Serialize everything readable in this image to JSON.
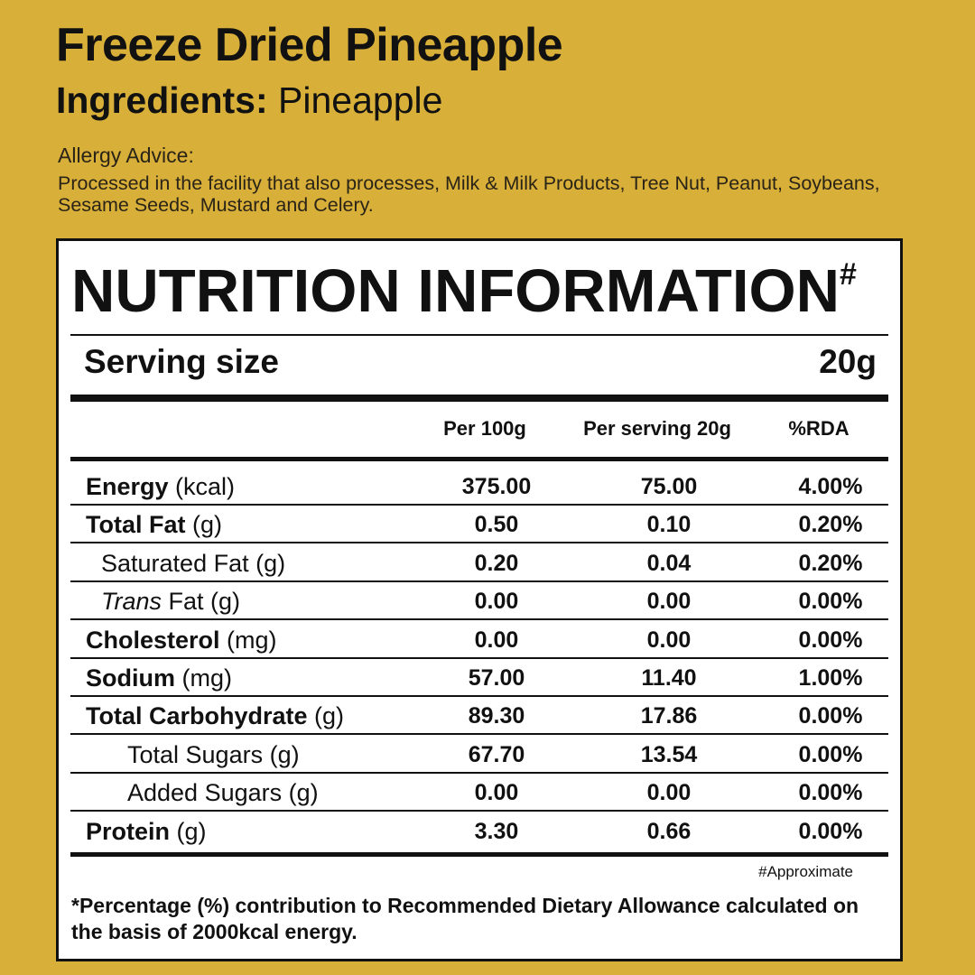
{
  "product": {
    "title": "Freeze Dried Pineapple",
    "ingredients_label": "Ingredients:",
    "ingredients_value": " Pineapple"
  },
  "allergy": {
    "title": "Allergy Advice:",
    "text": "Processed in the facility that also processes, Milk & Milk Products, Tree Nut, Peanut, Soybeans, Sesame Seeds, Mustard and Celery."
  },
  "panel": {
    "title": "NUTRITION INFORMATION",
    "title_mark": "#",
    "serving_label": "Serving size",
    "serving_value": "20g",
    "columns": [
      "Per 100g",
      "Per serving 20g",
      "%RDA"
    ],
    "rows": [
      {
        "name": "Energy",
        "unit": " (kcal)",
        "style": "bold",
        "per100": "375.00",
        "serving": "75.00",
        "rda": "4.00%"
      },
      {
        "name": "Total Fat",
        "unit": " (g)",
        "style": "bold",
        "per100": "0.50",
        "serving": "0.10",
        "rda": "0.20%"
      },
      {
        "name": "Saturated Fat (g)",
        "unit": "",
        "style": "indent1",
        "per100": "0.20",
        "serving": "0.04",
        "rda": "0.20%"
      },
      {
        "name": "Trans",
        "unit": " Fat (g)",
        "style": "italic-indent1",
        "per100": "0.00",
        "serving": "0.00",
        "rda": "0.00%"
      },
      {
        "name": "Cholesterol",
        "unit": " (mg)",
        "style": "bold",
        "per100": "0.00",
        "serving": "0.00",
        "rda": "0.00%"
      },
      {
        "name": "Sodium",
        "unit": " (mg)",
        "style": "bold",
        "per100": "57.00",
        "serving": "11.40",
        "rda": "1.00%"
      },
      {
        "name": "Total Carbohydrate",
        "unit": " (g)",
        "style": "bold",
        "per100": "89.30",
        "serving": "17.86",
        "rda": "0.00%"
      },
      {
        "name": "Total Sugars (g)",
        "unit": "",
        "style": "indent2",
        "per100": "67.70",
        "serving": "13.54",
        "rda": "0.00%"
      },
      {
        "name": "Added Sugars (g)",
        "unit": "",
        "style": "indent2",
        "per100": "0.00",
        "serving": "0.00",
        "rda": "0.00%"
      },
      {
        "name": "Protein",
        "unit": " (g)",
        "style": "bold",
        "per100": "3.30",
        "serving": "0.66",
        "rda": "0.00%"
      }
    ],
    "approx_note": "#Approximate",
    "footnote": "*Percentage (%) contribution to Recommended Dietary Allowance calculated on the basis of 2000kcal energy."
  }
}
